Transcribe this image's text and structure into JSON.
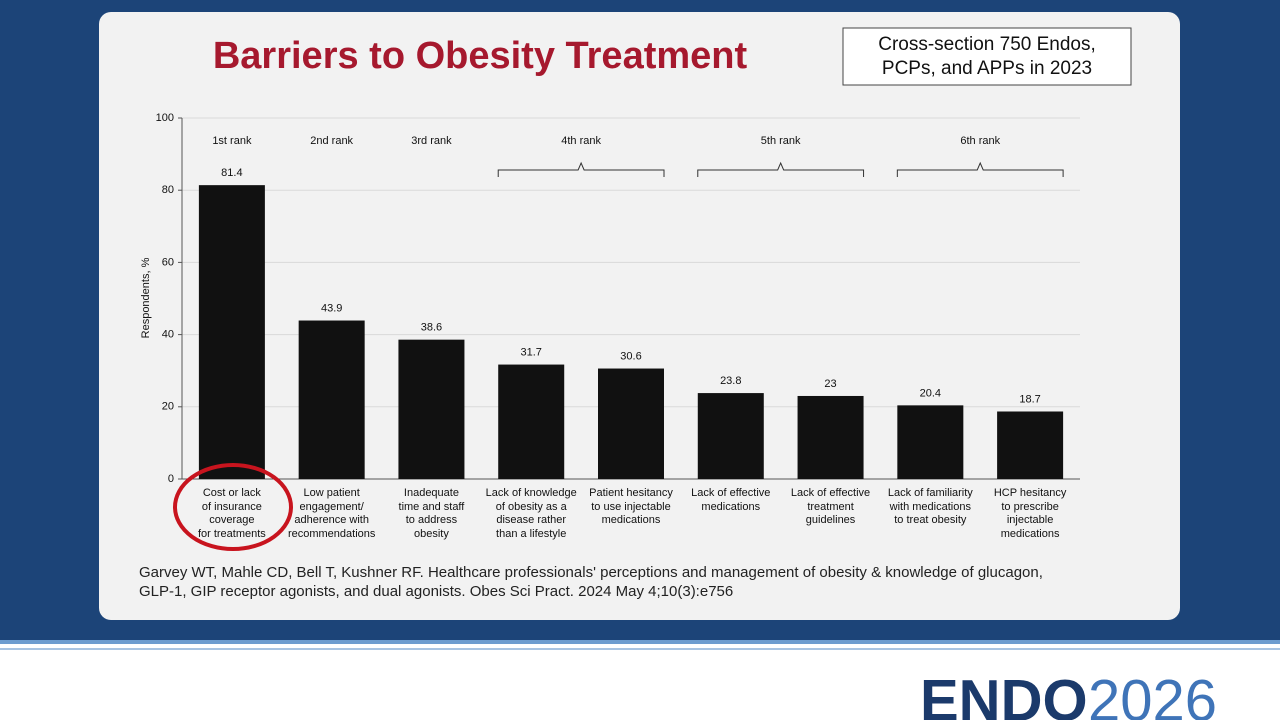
{
  "title": "Barriers to Obesity Treatment",
  "study_box": [
    "Cross-section 750 Endos,",
    "PCPs, and APPs in 2023"
  ],
  "citation": [
    "Garvey WT, Mahle CD, Bell T, Kushner RF. Healthcare professionals' perceptions and management of obesity & knowledge of glucagon,",
    "GLP-1, GIP receptor agonists, and dual agonists. Obes Sci Pract. 2024 May 4;10(3):e756"
  ],
  "logo": {
    "name": "ENDO",
    "year": "2026"
  },
  "chart_data": {
    "type": "bar",
    "y_label": "Respondents, %",
    "categories": [
      "Cost or lack\nof insurance\ncoverage\nfor treatments",
      "Low patient\nengagement/\nadherence with\nrecommendations",
      "Inadequate\ntime and staff\nto address\nobesity",
      "Lack of knowledge\nof obesity as a\ndisease rather\nthan a lifestyle",
      "Patient hesitancy\nto use injectable\nmedications",
      "Lack of effective\nmedications",
      "Lack of effective\ntreatment\nguidelines",
      "Lack of familiarity\nwith medications\nto treat obesity",
      "HCP hesitancy\nto prescribe\ninjectable\nmedications"
    ],
    "values": [
      81.4,
      43.9,
      38.6,
      31.7,
      30.6,
      23.8,
      23,
      20.4,
      18.7
    ],
    "color": "#111111",
    "ranks": [
      "1st rank",
      "2nd rank",
      "3rd rank",
      "4th rank",
      "5th rank",
      "6th rank"
    ],
    "ylim": [
      0,
      100
    ],
    "yticks": [
      0,
      20,
      40,
      60,
      80,
      100
    ],
    "grid": true
  }
}
